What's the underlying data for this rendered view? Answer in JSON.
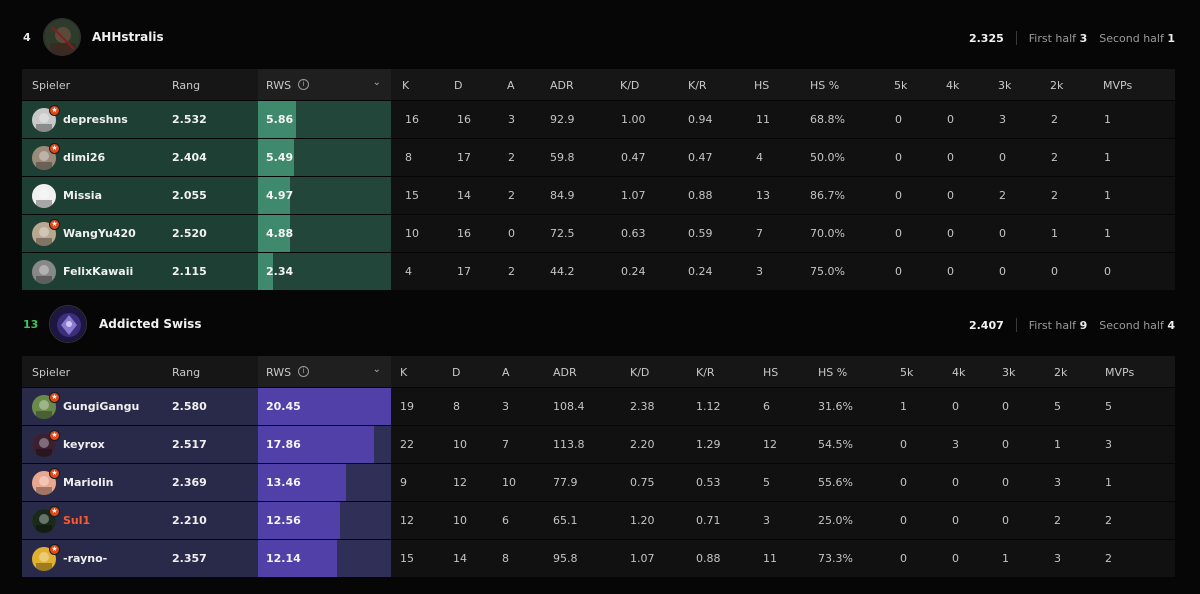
{
  "headers": {
    "player": "Spieler",
    "rank": "Rang",
    "rws": "RWS",
    "k": "K",
    "d": "D",
    "a": "A",
    "adr": "ADR",
    "kd": "K/D",
    "kr": "K/R",
    "hs": "HS",
    "hsp": "HS %",
    "k5": "5k",
    "k4": "4k",
    "k3": "3k",
    "k2": "2k",
    "mvps": "MVPs"
  },
  "teams": [
    {
      "score": "4",
      "name": "AHHstralis",
      "rating": "2.325",
      "first_half_label": "First half",
      "first_half": "3",
      "second_half_label": "Second half",
      "second_half": "1",
      "rws_max_scale": 20.45,
      "players": [
        {
          "name": "depreshns",
          "rank": "2.532",
          "rws": "5.86",
          "k": "16",
          "d": "16",
          "a": "3",
          "adr": "92.9",
          "kd": "1.00",
          "kr": "0.94",
          "hs": "11",
          "hsp": "68.8%",
          "k5": "0",
          "k4": "0",
          "k3": "3",
          "k2": "2",
          "mvps": "1"
        },
        {
          "name": "dimi26",
          "rank": "2.404",
          "rws": "5.49",
          "k": "8",
          "d": "17",
          "a": "2",
          "adr": "59.8",
          "kd": "0.47",
          "kr": "0.47",
          "hs": "4",
          "hsp": "50.0%",
          "k5": "0",
          "k4": "0",
          "k3": "0",
          "k2": "2",
          "mvps": "1"
        },
        {
          "name": "Missia",
          "rank": "2.055",
          "rws": "4.97",
          "k": "15",
          "d": "14",
          "a": "2",
          "adr": "84.9",
          "kd": "1.07",
          "kr": "0.88",
          "hs": "13",
          "hsp": "86.7%",
          "k5": "0",
          "k4": "0",
          "k3": "2",
          "k2": "2",
          "mvps": "1"
        },
        {
          "name": "WangYu420",
          "rank": "2.520",
          "rws": "4.88",
          "k": "10",
          "d": "16",
          "a": "0",
          "adr": "72.5",
          "kd": "0.63",
          "kr": "0.59",
          "hs": "7",
          "hsp": "70.0%",
          "k5": "0",
          "k4": "0",
          "k3": "0",
          "k2": "1",
          "mvps": "1"
        },
        {
          "name": "FelixKawaii",
          "rank": "2.115",
          "rws": "2.34",
          "k": "4",
          "d": "17",
          "a": "2",
          "adr": "44.2",
          "kd": "0.24",
          "kr": "0.24",
          "hs": "3",
          "hsp": "75.0%",
          "k5": "0",
          "k4": "0",
          "k3": "0",
          "k2": "0",
          "mvps": "0"
        }
      ]
    },
    {
      "score": "13",
      "name": "Addicted Swiss",
      "rating": "2.407",
      "first_half_label": "First half",
      "first_half": "9",
      "second_half_label": "Second half",
      "second_half": "4",
      "rws_max_scale": 20.45,
      "players": [
        {
          "name": "GungiGangu",
          "rank": "2.580",
          "rws": "20.45",
          "k": "19",
          "d": "8",
          "a": "3",
          "adr": "108.4",
          "kd": "2.38",
          "kr": "1.12",
          "hs": "6",
          "hsp": "31.6%",
          "k5": "1",
          "k4": "0",
          "k3": "0",
          "k2": "5",
          "mvps": "5"
        },
        {
          "name": "keyrox",
          "rank": "2.517",
          "rws": "17.86",
          "k": "22",
          "d": "10",
          "a": "7",
          "adr": "113.8",
          "kd": "2.20",
          "kr": "1.29",
          "hs": "12",
          "hsp": "54.5%",
          "k5": "0",
          "k4": "3",
          "k3": "0",
          "k2": "1",
          "mvps": "3"
        },
        {
          "name": "Mariolin",
          "rank": "2.369",
          "rws": "13.46",
          "k": "9",
          "d": "12",
          "a": "10",
          "adr": "77.9",
          "kd": "0.75",
          "kr": "0.53",
          "hs": "5",
          "hsp": "55.6%",
          "k5": "0",
          "k4": "0",
          "k3": "0",
          "k2": "3",
          "mvps": "1"
        },
        {
          "name": "Sul1",
          "rank": "2.210",
          "rws": "12.56",
          "k": "12",
          "d": "10",
          "a": "6",
          "adr": "65.1",
          "kd": "1.20",
          "kr": "0.71",
          "hs": "3",
          "hsp": "25.0%",
          "k5": "0",
          "k4": "0",
          "k3": "0",
          "k2": "2",
          "mvps": "2"
        },
        {
          "name": "-rayno-",
          "rank": "2.357",
          "rws": "12.14",
          "k": "15",
          "d": "14",
          "a": "8",
          "adr": "95.8",
          "kd": "1.07",
          "kr": "0.88",
          "hs": "11",
          "hsp": "73.3%",
          "k5": "0",
          "k4": "0",
          "k3": "1",
          "k2": "3",
          "mvps": "2"
        }
      ]
    }
  ]
}
